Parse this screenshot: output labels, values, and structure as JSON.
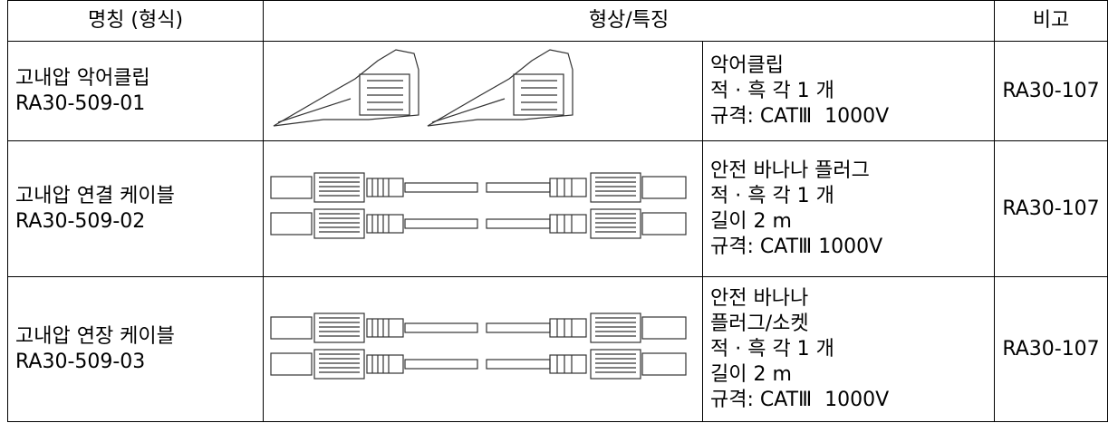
{
  "table": {
    "header": [
      "명칭 (형식)",
      "형상/특징",
      "비고"
    ],
    "rows": [
      {
        "name": [
          "고내압 악어클립",
          "RA30-509-01"
        ],
        "features": [
          "악어클립",
          "적 · 흑 각 1 개",
          "규격: CATⅢ  1000V"
        ],
        "remark": "RA30-107"
      },
      {
        "name": [
          "고내압 연결 케이블",
          "RA30-509-02"
        ],
        "features": [
          "안전 바나나 플러그",
          "적 · 흑 각 1 개",
          "길이 2 m",
          "규격: CATⅢ 1000V"
        ],
        "remark": "RA30-107"
      },
      {
        "name": [
          "고내압 연장 케이블",
          "RA30-509-03"
        ],
        "features": [
          "안전 바나나",
          "플러그/소켓",
          "적 · 흑 각 1 개",
          "길이 2 m",
          "규격: CATⅢ  1000V"
        ],
        "remark": "RA30-107"
      }
    ]
  }
}
